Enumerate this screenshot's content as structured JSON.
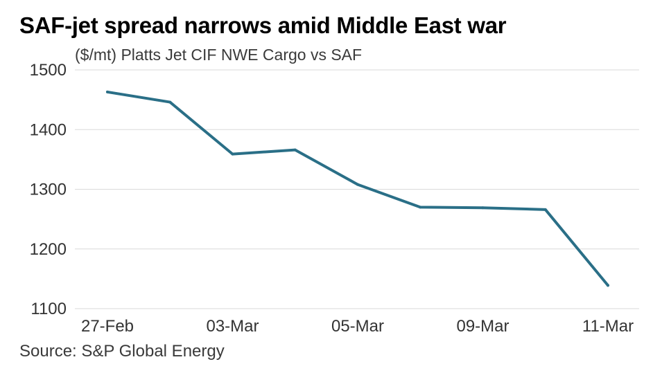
{
  "chart_data": {
    "type": "line",
    "title": "SAF-jet spread narrows amid Middle East war",
    "subtitle": "($/mt) Platts Jet CIF NWE Cargo vs SAF",
    "source": "Source: S&P Global Energy",
    "xlabel": "",
    "ylabel": "",
    "x_tick_labels": [
      "27-Feb",
      "03-Mar",
      "05-Mar",
      "09-Mar",
      "11-Mar"
    ],
    "x_tick_indices": [
      0,
      2,
      4,
      6,
      8
    ],
    "y_ticks": [
      1100,
      1200,
      1300,
      1400,
      1500
    ],
    "ylim": [
      1100,
      1500
    ],
    "grid": true,
    "series": [
      {
        "name": "Platts Jet CIF NWE Cargo vs SAF",
        "color": "#2a6f87",
        "values": [
          1463,
          1446,
          1359,
          1366,
          1308,
          1270,
          1269,
          1266,
          1139
        ]
      }
    ]
  }
}
